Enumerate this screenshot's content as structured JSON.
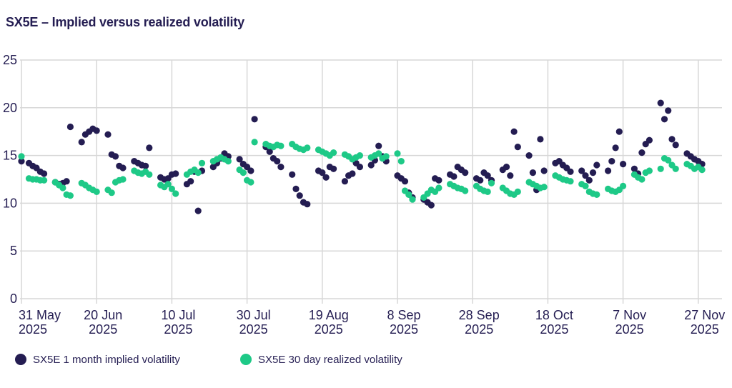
{
  "title": "SX5E – Implied versus realized volatility",
  "colors": {
    "implied": "#241d52",
    "realized": "#1ec987",
    "grid": "#d7d7d7",
    "text": "#241d52",
    "background": "#ffffff"
  },
  "legend": {
    "items": [
      {
        "key": "implied",
        "label": "SX5E 1 month implied volatility"
      },
      {
        "key": "realized",
        "label": "SX5E 30 day realized volatility"
      }
    ]
  },
  "chart_data": {
    "type": "scatter",
    "title": "SX5E – Implied versus realized volatility",
    "xlabel": "",
    "ylabel": "",
    "x_unit": "days since 31 May 2025",
    "ylim": [
      0,
      25
    ],
    "y_ticks": [
      0,
      5,
      10,
      15,
      20,
      25
    ],
    "grid": true,
    "legend_position": "bottom",
    "x_ticks": [
      {
        "day": 0,
        "line1": "31 May",
        "line2": "2025"
      },
      {
        "day": 20,
        "line1": "20 Jun",
        "line2": "2025"
      },
      {
        "day": 40,
        "line1": "10 Jul",
        "line2": "2025"
      },
      {
        "day": 60,
        "line1": "30 Jul",
        "line2": "2025"
      },
      {
        "day": 80,
        "line1": "19 Aug",
        "line2": "2025"
      },
      {
        "day": 100,
        "line1": "8 Sep",
        "line2": "2025"
      },
      {
        "day": 120,
        "line1": "28 Sep",
        "line2": "2025"
      },
      {
        "day": 140,
        "line1": "18 Oct",
        "line2": "2025"
      },
      {
        "day": 160,
        "line1": "7 Nov",
        "line2": "2025"
      },
      {
        "day": 180,
        "line1": "27 Nov",
        "line2": "2025"
      }
    ],
    "series": [
      {
        "name": "SX5E 1 month implied volatility",
        "color_key": "implied",
        "points": [
          [
            0,
            14.4
          ],
          [
            2,
            14.2
          ],
          [
            3,
            13.9
          ],
          [
            4,
            13.7
          ],
          [
            5,
            13.3
          ],
          [
            6,
            13.1
          ],
          [
            9,
            12.2
          ],
          [
            10,
            12.0
          ],
          [
            11,
            12.1
          ],
          [
            12,
            12.3
          ],
          [
            13,
            18.0
          ],
          [
            16,
            16.4
          ],
          [
            17,
            17.2
          ],
          [
            18,
            17.5
          ],
          [
            19,
            17.8
          ],
          [
            20,
            17.6
          ],
          [
            23,
            17.2
          ],
          [
            24,
            15.1
          ],
          [
            25,
            14.9
          ],
          [
            26,
            13.9
          ],
          [
            27,
            13.7
          ],
          [
            30,
            14.4
          ],
          [
            31,
            14.2
          ],
          [
            32,
            14.0
          ],
          [
            33,
            13.9
          ],
          [
            34,
            15.8
          ],
          [
            37,
            12.7
          ],
          [
            38,
            12.5
          ],
          [
            39,
            12.6
          ],
          [
            40,
            13.0
          ],
          [
            41,
            13.1
          ],
          [
            44,
            12.0
          ],
          [
            45,
            12.3
          ],
          [
            46,
            13.3
          ],
          [
            47,
            9.2
          ],
          [
            48,
            13.4
          ],
          [
            51,
            13.8
          ],
          [
            52,
            14.2
          ],
          [
            53,
            14.7
          ],
          [
            54,
            15.2
          ],
          [
            55,
            14.9
          ],
          [
            58,
            14.6
          ],
          [
            59,
            14.1
          ],
          [
            60,
            13.8
          ],
          [
            61,
            13.4
          ],
          [
            62,
            18.8
          ],
          [
            65,
            15.9
          ],
          [
            66,
            15.4
          ],
          [
            67,
            14.7
          ],
          [
            68,
            14.4
          ],
          [
            69,
            13.8
          ],
          [
            72,
            13.0
          ],
          [
            73,
            11.5
          ],
          [
            74,
            10.8
          ],
          [
            75,
            10.1
          ],
          [
            76,
            9.9
          ],
          [
            79,
            13.4
          ],
          [
            80,
            13.2
          ],
          [
            81,
            12.7
          ],
          [
            82,
            13.8
          ],
          [
            83,
            13.6
          ],
          [
            86,
            12.3
          ],
          [
            87,
            12.9
          ],
          [
            88,
            13.1
          ],
          [
            89,
            14.2
          ],
          [
            90,
            13.8
          ],
          [
            93,
            14.0
          ],
          [
            94,
            14.5
          ],
          [
            95,
            16.0
          ],
          [
            96,
            14.9
          ],
          [
            97,
            14.4
          ],
          [
            100,
            12.9
          ],
          [
            101,
            12.6
          ],
          [
            102,
            12.3
          ],
          [
            103,
            11.1
          ],
          [
            104,
            10.6
          ],
          [
            107,
            10.4
          ],
          [
            108,
            10.1
          ],
          [
            109,
            9.8
          ],
          [
            110,
            12.6
          ],
          [
            111,
            12.4
          ],
          [
            114,
            13.0
          ],
          [
            115,
            12.8
          ],
          [
            116,
            13.8
          ],
          [
            117,
            13.5
          ],
          [
            118,
            13.2
          ],
          [
            121,
            12.6
          ],
          [
            122,
            12.4
          ],
          [
            123,
            13.2
          ],
          [
            124,
            12.9
          ],
          [
            125,
            12.4
          ],
          [
            128,
            13.5
          ],
          [
            129,
            13.8
          ],
          [
            130,
            12.9
          ],
          [
            131,
            17.5
          ],
          [
            132,
            15.9
          ],
          [
            135,
            15.0
          ],
          [
            136,
            13.2
          ],
          [
            137,
            11.4
          ],
          [
            138,
            16.7
          ],
          [
            139,
            13.4
          ],
          [
            142,
            14.2
          ],
          [
            143,
            14.4
          ],
          [
            144,
            14.0
          ],
          [
            145,
            13.7
          ],
          [
            146,
            13.3
          ],
          [
            149,
            13.4
          ],
          [
            150,
            12.9
          ],
          [
            151,
            12.4
          ],
          [
            152,
            13.2
          ],
          [
            153,
            14.0
          ],
          [
            156,
            13.4
          ],
          [
            157,
            14.4
          ],
          [
            158,
            15.8
          ],
          [
            159,
            17.5
          ],
          [
            160,
            14.1
          ],
          [
            163,
            13.6
          ],
          [
            164,
            13.1
          ],
          [
            165,
            15.3
          ],
          [
            166,
            16.2
          ],
          [
            167,
            16.6
          ],
          [
            170,
            20.5
          ],
          [
            171,
            18.8
          ],
          [
            172,
            19.7
          ],
          [
            173,
            16.7
          ],
          [
            174,
            16.1
          ],
          [
            177,
            15.2
          ],
          [
            178,
            14.9
          ],
          [
            179,
            14.6
          ],
          [
            180,
            14.4
          ],
          [
            181,
            14.1
          ]
        ]
      },
      {
        "name": "SX5E 30 day realized volatility",
        "color_key": "realized",
        "points": [
          [
            0,
            14.9
          ],
          [
            2,
            12.6
          ],
          [
            3,
            12.5
          ],
          [
            4,
            12.5
          ],
          [
            5,
            12.4
          ],
          [
            6,
            12.4
          ],
          [
            9,
            12.2
          ],
          [
            10,
            11.9
          ],
          [
            11,
            11.6
          ],
          [
            12,
            10.9
          ],
          [
            13,
            10.8
          ],
          [
            16,
            12.1
          ],
          [
            17,
            11.9
          ],
          [
            18,
            11.6
          ],
          [
            19,
            11.4
          ],
          [
            20,
            11.2
          ],
          [
            23,
            11.4
          ],
          [
            24,
            11.1
          ],
          [
            25,
            12.2
          ],
          [
            26,
            12.4
          ],
          [
            27,
            12.5
          ],
          [
            30,
            13.4
          ],
          [
            31,
            13.2
          ],
          [
            32,
            13.1
          ],
          [
            33,
            13.3
          ],
          [
            34,
            13.0
          ],
          [
            37,
            11.9
          ],
          [
            38,
            11.7
          ],
          [
            39,
            12.0
          ],
          [
            40,
            11.5
          ],
          [
            41,
            11.0
          ],
          [
            44,
            13.0
          ],
          [
            45,
            13.3
          ],
          [
            46,
            13.5
          ],
          [
            47,
            13.2
          ],
          [
            48,
            14.2
          ],
          [
            51,
            14.4
          ],
          [
            52,
            14.6
          ],
          [
            53,
            14.8
          ],
          [
            54,
            14.6
          ],
          [
            55,
            14.4
          ],
          [
            58,
            13.5
          ],
          [
            59,
            13.2
          ],
          [
            60,
            12.4
          ],
          [
            61,
            12.2
          ],
          [
            62,
            16.4
          ],
          [
            65,
            16.2
          ],
          [
            66,
            16.0
          ],
          [
            67,
            15.9
          ],
          [
            68,
            16.1
          ],
          [
            69,
            16.0
          ],
          [
            72,
            16.2
          ],
          [
            73,
            15.9
          ],
          [
            74,
            15.7
          ],
          [
            75,
            15.6
          ],
          [
            76,
            15.8
          ],
          [
            79,
            15.6
          ],
          [
            80,
            15.4
          ],
          [
            81,
            15.2
          ],
          [
            82,
            15.0
          ],
          [
            83,
            15.3
          ],
          [
            86,
            15.1
          ],
          [
            87,
            14.9
          ],
          [
            88,
            14.6
          ],
          [
            89,
            14.8
          ],
          [
            90,
            15.0
          ],
          [
            93,
            14.8
          ],
          [
            94,
            15.0
          ],
          [
            95,
            15.2
          ],
          [
            96,
            14.7
          ],
          [
            97,
            14.9
          ],
          [
            100,
            15.2
          ],
          [
            101,
            14.4
          ],
          [
            102,
            11.3
          ],
          [
            103,
            10.9
          ],
          [
            104,
            10.4
          ],
          [
            107,
            10.6
          ],
          [
            108,
            11.0
          ],
          [
            109,
            11.4
          ],
          [
            110,
            11.2
          ],
          [
            111,
            11.6
          ],
          [
            114,
            12.0
          ],
          [
            115,
            11.8
          ],
          [
            116,
            11.6
          ],
          [
            117,
            11.5
          ],
          [
            118,
            11.3
          ],
          [
            121,
            11.8
          ],
          [
            122,
            11.5
          ],
          [
            123,
            11.3
          ],
          [
            124,
            11.2
          ],
          [
            125,
            12.1
          ],
          [
            128,
            11.6
          ],
          [
            129,
            11.3
          ],
          [
            130,
            11.0
          ],
          [
            131,
            10.9
          ],
          [
            132,
            11.2
          ],
          [
            135,
            12.2
          ],
          [
            136,
            12.0
          ],
          [
            137,
            11.8
          ],
          [
            138,
            11.6
          ],
          [
            139,
            11.7
          ],
          [
            142,
            12.9
          ],
          [
            143,
            12.7
          ],
          [
            144,
            12.5
          ],
          [
            145,
            12.4
          ],
          [
            146,
            12.3
          ],
          [
            149,
            12.0
          ],
          [
            150,
            11.8
          ],
          [
            151,
            11.2
          ],
          [
            152,
            11.0
          ],
          [
            153,
            10.9
          ],
          [
            156,
            11.5
          ],
          [
            157,
            11.3
          ],
          [
            158,
            11.2
          ],
          [
            159,
            11.4
          ],
          [
            160,
            11.8
          ],
          [
            163,
            13.0
          ],
          [
            164,
            12.7
          ],
          [
            165,
            12.5
          ],
          [
            166,
            13.2
          ],
          [
            167,
            13.4
          ],
          [
            170,
            13.6
          ],
          [
            171,
            14.7
          ],
          [
            172,
            14.5
          ],
          [
            173,
            14.0
          ],
          [
            174,
            13.6
          ],
          [
            177,
            14.1
          ],
          [
            178,
            13.9
          ],
          [
            179,
            13.6
          ],
          [
            180,
            13.8
          ],
          [
            181,
            13.5
          ]
        ]
      }
    ]
  }
}
